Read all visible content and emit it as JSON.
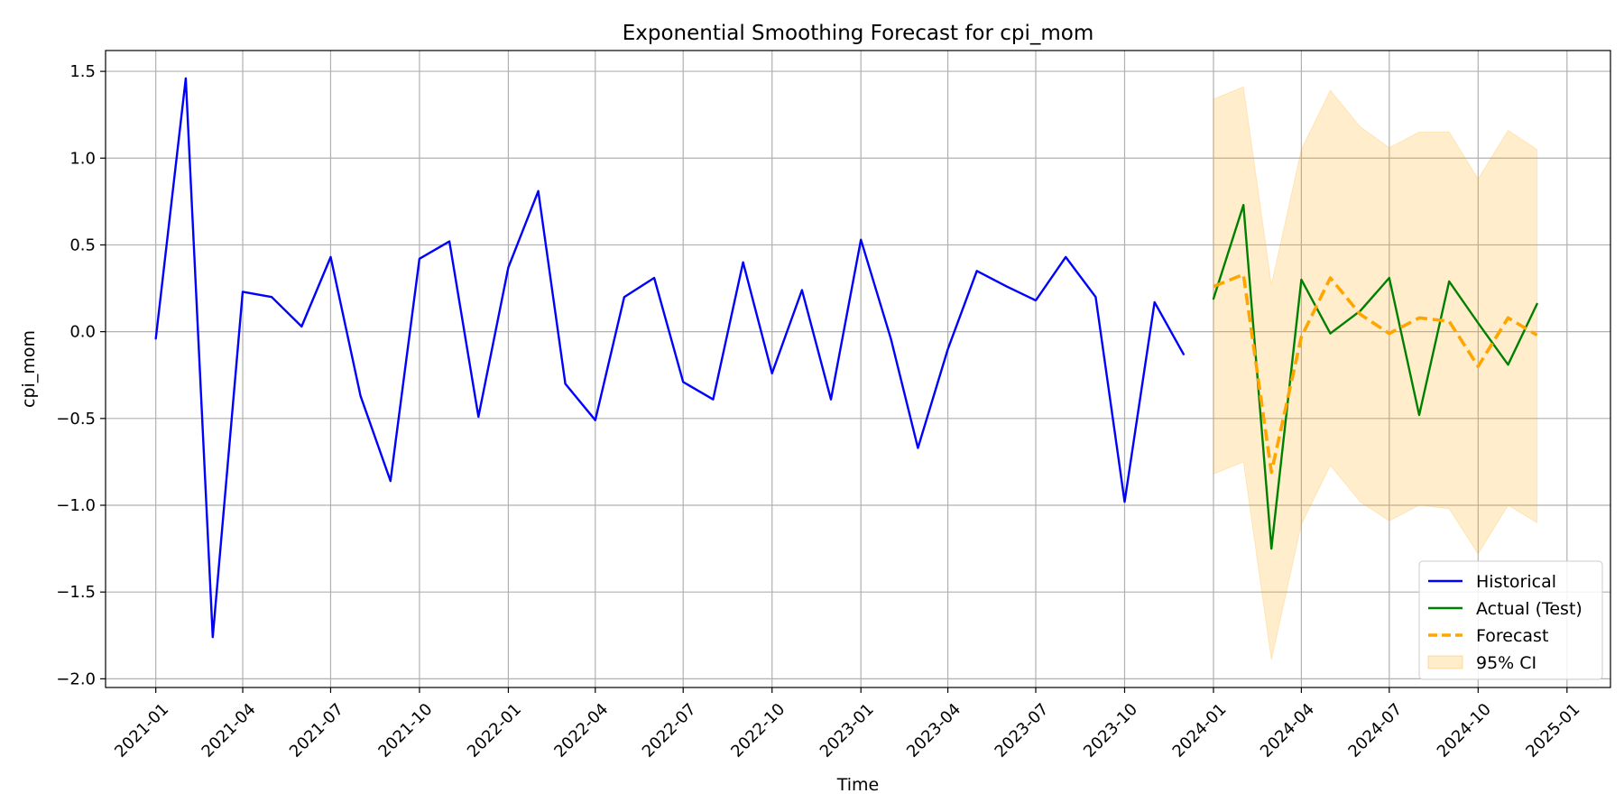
{
  "chart_data": {
    "type": "line",
    "title": "Exponential Smoothing Forecast for cpi_mom",
    "xlabel": "Time",
    "ylabel": "cpi_mom",
    "x_axis": "date",
    "xlim": [
      "2020-11-10",
      "2025-02-15"
    ],
    "ylim": [
      -2.05,
      1.62
    ],
    "grid": true,
    "legend_placement": "lower-right",
    "x_ticks": [
      "2021-01",
      "2021-04",
      "2021-07",
      "2021-10",
      "2022-01",
      "2022-04",
      "2022-07",
      "2022-10",
      "2023-01",
      "2023-04",
      "2023-07",
      "2023-10",
      "2024-01",
      "2024-04",
      "2024-07",
      "2024-10",
      "2025-01"
    ],
    "y_ticks": [
      -2.0,
      -1.5,
      -1.0,
      -0.5,
      0.0,
      0.5,
      1.0,
      1.5
    ],
    "y_tick_labels": [
      "−2.0",
      "−1.5",
      "−1.0",
      "−0.5",
      "0.0",
      "0.5",
      "1.0",
      "1.5"
    ],
    "series": [
      {
        "name": "Historical",
        "color": "#0000ff",
        "style": "solid",
        "x": [
          "2021-01",
          "2021-02",
          "2021-03",
          "2021-04",
          "2021-05",
          "2021-06",
          "2021-07",
          "2021-08",
          "2021-09",
          "2021-10",
          "2021-11",
          "2021-12",
          "2022-01",
          "2022-02",
          "2022-03",
          "2022-04",
          "2022-05",
          "2022-06",
          "2022-07",
          "2022-08",
          "2022-09",
          "2022-10",
          "2022-11",
          "2022-12",
          "2023-01",
          "2023-02",
          "2023-03",
          "2023-04",
          "2023-05",
          "2023-06",
          "2023-07",
          "2023-08",
          "2023-09",
          "2023-10",
          "2023-11",
          "2023-12"
        ],
        "values": [
          -0.04,
          1.46,
          -1.76,
          0.23,
          0.2,
          0.03,
          0.43,
          -0.37,
          -0.86,
          0.42,
          0.52,
          -0.49,
          0.37,
          0.81,
          -0.3,
          -0.51,
          0.2,
          0.31,
          -0.29,
          -0.39,
          0.4,
          -0.24,
          0.24,
          -0.39,
          0.53,
          -0.04,
          -0.67,
          -0.1,
          0.35,
          0.26,
          0.18,
          0.43,
          0.2,
          -0.98,
          0.17,
          -0.13
        ]
      },
      {
        "name": "Actual (Test)",
        "color": "#008000",
        "style": "solid",
        "x": [
          "2024-01",
          "2024-02",
          "2024-03",
          "2024-04",
          "2024-05",
          "2024-06",
          "2024-07",
          "2024-08",
          "2024-09",
          "2024-10",
          "2024-11",
          "2024-12"
        ],
        "values": [
          0.19,
          0.73,
          -1.25,
          0.3,
          -0.01,
          0.12,
          0.31,
          -0.48,
          0.29,
          0.05,
          -0.19,
          0.16
        ]
      },
      {
        "name": "Forecast",
        "color": "#ffa500",
        "style": "dashed",
        "x": [
          "2024-01",
          "2024-02",
          "2024-03",
          "2024-04",
          "2024-05",
          "2024-06",
          "2024-07",
          "2024-08",
          "2024-09",
          "2024-10",
          "2024-11",
          "2024-12"
        ],
        "values": [
          0.26,
          0.33,
          -0.81,
          -0.03,
          0.31,
          0.1,
          -0.01,
          0.08,
          0.06,
          -0.2,
          0.08,
          -0.02
        ]
      }
    ],
    "confidence_band": {
      "name": "95% CI",
      "color": "#ffa500",
      "opacity": 0.2,
      "x": [
        "2024-01",
        "2024-02",
        "2024-03",
        "2024-04",
        "2024-05",
        "2024-06",
        "2024-07",
        "2024-08",
        "2024-09",
        "2024-10",
        "2024-11",
        "2024-12"
      ],
      "upper": [
        1.34,
        1.41,
        0.27,
        1.05,
        1.39,
        1.18,
        1.06,
        1.15,
        1.15,
        0.88,
        1.16,
        1.05
      ],
      "lower": [
        -0.82,
        -0.75,
        -1.89,
        -1.11,
        -0.77,
        -0.98,
        -1.09,
        -1.0,
        -1.02,
        -1.28,
        -1.0,
        -1.1
      ]
    }
  }
}
